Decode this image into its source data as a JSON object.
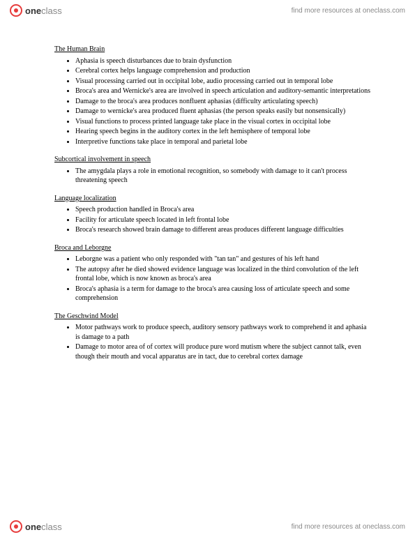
{
  "header": {
    "logo_one": "one",
    "logo_class": "class",
    "tagline": "find more resources at oneclass.com"
  },
  "footer": {
    "logo_one": "one",
    "logo_class": "class",
    "tagline": "find more resources at oneclass.com"
  },
  "sections": [
    {
      "title": "The Human Brain",
      "items": [
        "Aphasia is speech disturbances due to brain dysfunction",
        "Cerebral cortex helps language comprehension and production",
        "Visual processing carried out in occipital lobe, audio processing carried out in temporal lobe",
        "Broca's area and Wernicke's area are involved in speech articulation and auditory-semantic interpretations",
        "Damage to the broca's area produces nonfluent aphasias (difficulty articulating speech)",
        "Damage to wernicke's area produced fluent aphasias (the person speaks easily but nonsensically)",
        "Visual functions to process printed language take place in the visual cortex in occipital lobe",
        "Hearing speech begins in the auditory cortex in the left hemisphere of temporal lobe",
        "Interpretive functions take place in temporal and parietal lobe"
      ]
    },
    {
      "title": "Subcortical involvement in speech",
      "items": [
        "The amygdala plays a role in emotional recognition, so somebody with damage to it can't process threatening speech"
      ]
    },
    {
      "title": "Language localization",
      "items": [
        "Speech production handled in Broca's area",
        "Facility for articulate speech located in left frontal lobe",
        "Broca's research showed brain damage to different areas produces different language difficulties"
      ]
    },
    {
      "title": "Broca and Leborgne",
      "items": [
        "Leborgne was a patient who only responded with \"tan tan\" and gestures of his left hand",
        "The autopsy after he died showed evidence language was localized in the third convolution of the left frontal lobe, which is now known as broca's area",
        "Broca's aphasia is a term for damage to the broca's area causing loss of articulate speech and some comprehension"
      ]
    },
    {
      "title": "The Geschwind Model",
      "items": [
        "Motor pathways work to produce speech, auditory sensory pathways work to comprehend it and aphasia is damage to a path",
        "Damage to motor area of of cortex will produce pure word mutism where the subject cannot talk, even though their mouth and vocal apparatus are in tact, due to cerebral cortex damage"
      ]
    }
  ]
}
